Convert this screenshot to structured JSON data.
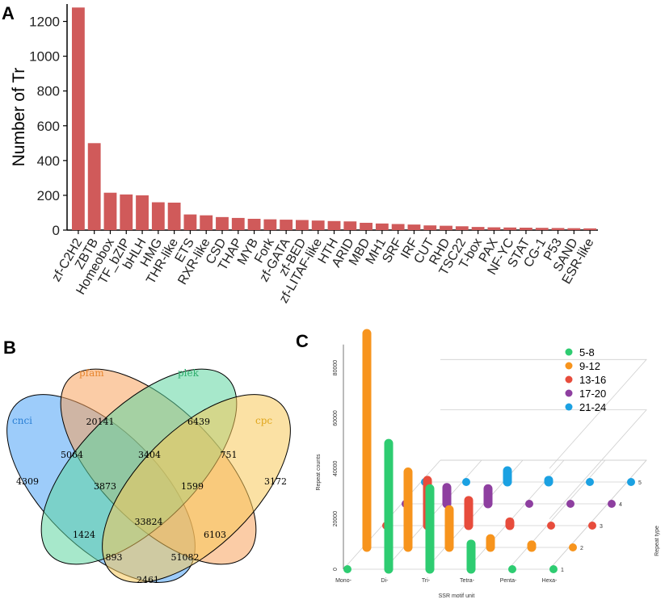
{
  "panels": {
    "a": "A",
    "b": "B",
    "c": "C"
  },
  "chart_data": [
    {
      "type": "bar",
      "ylabel": "Number of Tr",
      "ylim": [
        0,
        1300
      ],
      "yticks": [
        0,
        200,
        400,
        600,
        800,
        1000,
        1200
      ],
      "color": "#d05a5a",
      "categories": [
        "zf-C2H2",
        "ZBTB",
        "Homeobox",
        "TF_bZIP",
        "bHLH",
        "HMG",
        "THR-like",
        "ETS",
        "RXR-like",
        "CSD",
        "THAP",
        "MYB",
        "Fork",
        "zf-GATA",
        "zf-BED",
        "zf-LITAF-like",
        "HTH",
        "ARID",
        "MBD",
        "MH1",
        "SRF",
        "IRF",
        "CUT",
        "RHD",
        "TSC22",
        "T-box",
        "PAX",
        "NF-YC",
        "STAT",
        "CG-1",
        "P53",
        "SAND",
        "ESR-like"
      ],
      "values": [
        1280,
        500,
        215,
        205,
        200,
        160,
        158,
        90,
        85,
        75,
        70,
        65,
        62,
        60,
        58,
        55,
        52,
        50,
        42,
        38,
        35,
        32,
        27,
        25,
        22,
        18,
        16,
        15,
        14,
        13,
        12,
        11,
        10
      ]
    },
    {
      "type": "venn",
      "sets": [
        {
          "name": "cnci",
          "color": "#4da3f5"
        },
        {
          "name": "pfam",
          "color": "#f7a35c"
        },
        {
          "name": "plek",
          "color": "#5fd6a0"
        },
        {
          "name": "cpc",
          "color": "#f8c95a"
        }
      ],
      "regions": [
        {
          "sets": "cnci",
          "value": "4309"
        },
        {
          "sets": "pfam",
          "value": "20141"
        },
        {
          "sets": "plek",
          "value": "6439"
        },
        {
          "sets": "cpc",
          "value": "3172"
        },
        {
          "sets": "cnci&pfam",
          "value": "5064"
        },
        {
          "sets": "pfam&plek",
          "value": "3404"
        },
        {
          "sets": "plek&cpc",
          "value": "751"
        },
        {
          "sets": "cnci&pfam&plek",
          "value": "3873"
        },
        {
          "sets": "pfam&plek&cpc",
          "value": "1599"
        },
        {
          "sets": "all",
          "value": "33824"
        },
        {
          "sets": "cnci&plek",
          "value": "1424"
        },
        {
          "sets": "pfam&cpc",
          "value": "6103"
        },
        {
          "sets": "cnci&plek&cpc",
          "value": "893"
        },
        {
          "sets": "cnci&pfam&cpc",
          "value": "51082"
        },
        {
          "sets": "cnci&cpc",
          "value": "2461"
        }
      ]
    },
    {
      "type": "bar3d",
      "xlabel": "SSR motif unit",
      "ylabel": "Repeat counts",
      "zlabel": "Repeat type",
      "xcategories": [
        "Mono-",
        "Di-",
        "Tri-",
        "Tetra-",
        "Penta-",
        "Hexa-"
      ],
      "yticks": [
        "0",
        "20000",
        "40000",
        "60000",
        "80000"
      ],
      "ztick_labels": [
        "1",
        "2",
        "3",
        "4",
        "5"
      ],
      "legend": [
        "5-8",
        "9-12",
        "13-16",
        "17-20",
        "21-24"
      ],
      "colors": [
        "#2ecc71",
        "#f7941d",
        "#e74c3c",
        "#8e3fa0",
        "#1ba1e2"
      ],
      "series": [
        {
          "name": "5-8",
          "values": [
            0,
            50000,
            32000,
            10000,
            0,
            0
          ]
        },
        {
          "name": "9-12",
          "values": [
            85000,
            30000,
            15000,
            3500,
            1000,
            0
          ]
        },
        {
          "name": "13-16",
          "values": [
            0,
            18000,
            10000,
            1500,
            0,
            0
          ]
        },
        {
          "name": "17-20",
          "values": [
            0,
            6500,
            6000,
            0,
            0,
            0
          ]
        },
        {
          "name": "21-24",
          "values": [
            0,
            0,
            4500,
            700,
            0,
            0
          ]
        }
      ]
    }
  ]
}
